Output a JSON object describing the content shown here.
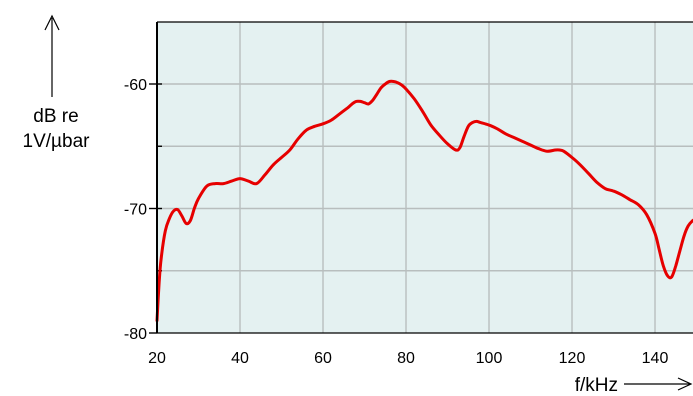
{
  "chart_data": {
    "type": "line",
    "ylabel_line1": "dB re",
    "ylabel_line2": "1V/µbar",
    "xlabel": "f/kHz",
    "xlim": [
      20,
      150
    ],
    "ylim": [
      -80,
      -55
    ],
    "xticks": [
      20,
      40,
      60,
      80,
      100,
      120,
      140
    ],
    "yticks": [
      -60,
      -70,
      -80
    ],
    "xtick_labels": [
      "20",
      "40",
      "60",
      "80",
      "100",
      "120",
      "140"
    ],
    "ytick_labels": [
      "-60",
      "-70",
      "-80"
    ],
    "grid": true,
    "series": [
      {
        "color": "#e60000",
        "x": [
          20,
          20.5,
          21,
          22,
          23,
          24,
          25,
          26,
          27,
          28,
          29,
          30,
          32,
          34,
          36,
          38,
          40,
          42,
          44,
          46,
          48,
          50,
          52,
          54,
          56,
          58,
          60,
          62,
          64,
          66,
          67,
          68,
          69,
          70,
          71,
          72,
          73,
          74,
          75,
          76,
          77,
          78,
          79,
          80,
          82,
          84,
          86,
          88,
          90,
          92,
          93,
          94,
          95,
          96,
          97,
          98,
          100,
          102,
          104,
          106,
          108,
          110,
          112,
          114,
          116,
          117,
          118,
          120,
          122,
          124,
          126,
          128,
          130,
          132,
          134,
          136,
          138,
          140,
          141,
          142,
          143,
          144,
          145,
          146,
          147,
          148,
          149,
          150
        ],
        "y": [
          -79.0,
          -76.0,
          -74.0,
          -71.8,
          -70.8,
          -70.2,
          -70.1,
          -70.6,
          -71.2,
          -71.0,
          -70.0,
          -69.2,
          -68.2,
          -68.0,
          -68.0,
          -67.8,
          -67.6,
          -67.8,
          -68.0,
          -67.3,
          -66.5,
          -65.9,
          -65.3,
          -64.4,
          -63.7,
          -63.4,
          -63.2,
          -62.9,
          -62.4,
          -61.9,
          -61.6,
          -61.4,
          -61.4,
          -61.5,
          -61.6,
          -61.3,
          -60.8,
          -60.3,
          -60.0,
          -59.8,
          -59.8,
          -59.9,
          -60.1,
          -60.4,
          -61.2,
          -62.2,
          -63.3,
          -64.1,
          -64.8,
          -65.3,
          -65.1,
          -64.2,
          -63.4,
          -63.1,
          -63.0,
          -63.1,
          -63.3,
          -63.6,
          -64.0,
          -64.3,
          -64.6,
          -64.9,
          -65.2,
          -65.4,
          -65.3,
          -65.3,
          -65.4,
          -65.9,
          -66.5,
          -67.2,
          -67.9,
          -68.4,
          -68.6,
          -68.9,
          -69.3,
          -69.7,
          -70.5,
          -72.0,
          -73.3,
          -74.6,
          -75.4,
          -75.5,
          -74.6,
          -73.4,
          -72.2,
          -71.4,
          -71.0,
          -70.8
        ]
      }
    ]
  }
}
